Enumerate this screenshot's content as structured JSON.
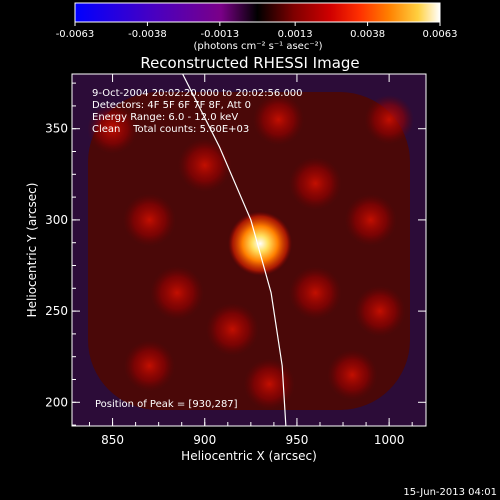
{
  "colorbar": {
    "ticks": [
      "-0.0063",
      "-0.0038",
      "-0.0013",
      "0.0013",
      "0.0038",
      "0.0063"
    ],
    "unit_label": "(photons cm⁻² s⁻¹ asec⁻²)",
    "colors": [
      "#0000ff",
      "#4a00c0",
      "#7a0088",
      "#000000",
      "#7f0000",
      "#d00000",
      "#ff3000",
      "#ff8000",
      "#ffd040",
      "#ffffff"
    ]
  },
  "annotations": {
    "time_range": "9-Oct-2004 20:02:20.000 to 20:02:56.000",
    "detectors": "Detectors: 4F 5F 6F 7F 8F, Att 0",
    "energy": "Energy Range: 6.0 - 12.0 keV",
    "clean_counts": "Clean    Total counts: 5.60E+03",
    "peak": "Position of Peak = [930,287]"
  },
  "footer_date": "15-Jun-2013 04:01",
  "chart_data": {
    "type": "heatmap",
    "title": "Reconstructed RHESSI Image",
    "xlabel": "Heliocentric X (arcsec)",
    "ylabel": "Heliocentric Y (arcsec)",
    "xlim": [
      828,
      1020
    ],
    "ylim": [
      187,
      380
    ],
    "x_ticks": [
      850,
      900,
      950,
      1000
    ],
    "y_ticks": [
      200,
      250,
      300,
      350
    ],
    "peak_position": [
      930,
      287
    ],
    "value_range": [
      -0.0063,
      0.0063
    ],
    "limb_curve": [
      [
        888,
        380
      ],
      [
        908,
        340
      ],
      [
        925,
        300
      ],
      [
        936,
        260
      ],
      [
        942,
        220
      ],
      [
        944,
        187
      ]
    ],
    "sources": [
      {
        "x": 930,
        "y": 287,
        "value": 0.0063
      },
      {
        "x": 900,
        "y": 330,
        "value": 0.0022
      },
      {
        "x": 870,
        "y": 300,
        "value": 0.002
      },
      {
        "x": 960,
        "y": 320,
        "value": 0.002
      },
      {
        "x": 990,
        "y": 300,
        "value": 0.0018
      },
      {
        "x": 885,
        "y": 260,
        "value": 0.0022
      },
      {
        "x": 915,
        "y": 240,
        "value": 0.002
      },
      {
        "x": 960,
        "y": 260,
        "value": 0.002
      },
      {
        "x": 995,
        "y": 250,
        "value": 0.0016
      },
      {
        "x": 870,
        "y": 220,
        "value": 0.0016
      },
      {
        "x": 935,
        "y": 210,
        "value": 0.0016
      },
      {
        "x": 980,
        "y": 215,
        "value": 0.0014
      },
      {
        "x": 850,
        "y": 350,
        "value": 0.0014
      },
      {
        "x": 940,
        "y": 355,
        "value": 0.0016
      },
      {
        "x": 1000,
        "y": 355,
        "value": 0.0012
      }
    ]
  }
}
